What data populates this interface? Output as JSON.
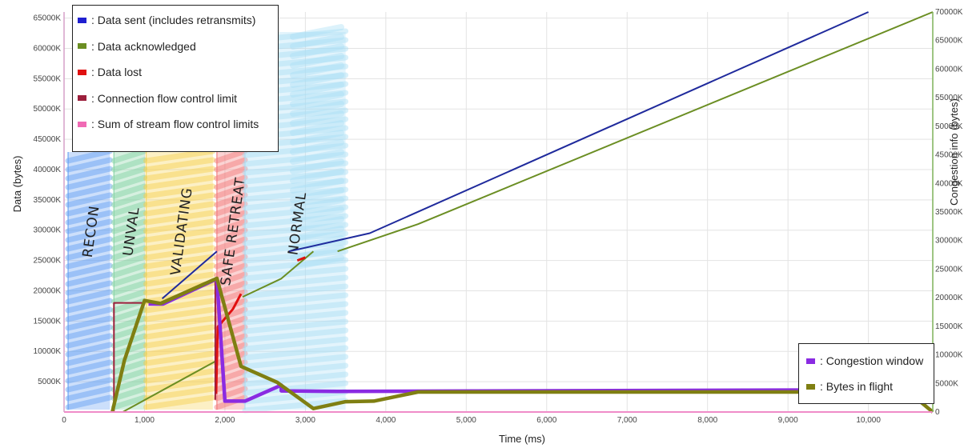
{
  "chart_data": {
    "type": "line",
    "xlabel": "Time (ms)",
    "ylabel": "Data (bytes)",
    "ylabel_right": "Congestion info (bytes)",
    "xlim": [
      0,
      10800
    ],
    "ylim": [
      0,
      66000
    ],
    "ylim_right": [
      0,
      70000
    ],
    "x_ticks": [
      {
        "value": 0,
        "label": "0"
      },
      {
        "value": 1000,
        "label": "1,000"
      },
      {
        "value": 2000,
        "label": "2,000"
      },
      {
        "value": 3000,
        "label": "3,000"
      },
      {
        "value": 4000,
        "label": "4,000"
      },
      {
        "value": 5000,
        "label": "5,000"
      },
      {
        "value": 6000,
        "label": "6,000"
      },
      {
        "value": 7000,
        "label": "7,000"
      },
      {
        "value": 8000,
        "label": "8,000"
      },
      {
        "value": 9000,
        "label": "9,000"
      },
      {
        "value": 10000,
        "label": "10,000"
      }
    ],
    "y_ticks_left": [
      {
        "value": 5000,
        "label": "5000K"
      },
      {
        "value": 10000,
        "label": "10000K"
      },
      {
        "value": 15000,
        "label": "15000K"
      },
      {
        "value": 20000,
        "label": "20000K"
      },
      {
        "value": 25000,
        "label": "25000K"
      },
      {
        "value": 30000,
        "label": "30000K"
      },
      {
        "value": 35000,
        "label": "35000K"
      },
      {
        "value": 40000,
        "label": "40000K"
      },
      {
        "value": 45000,
        "label": "45000K"
      },
      {
        "value": 50000,
        "label": "50000K"
      },
      {
        "value": 55000,
        "label": "55000K"
      },
      {
        "value": 60000,
        "label": "60000K"
      },
      {
        "value": 65000,
        "label": "65000K"
      }
    ],
    "y_ticks_right": [
      {
        "value": 0,
        "label": "0"
      },
      {
        "value": 5000,
        "label": "5000K"
      },
      {
        "value": 10000,
        "label": "10000K"
      },
      {
        "value": 15000,
        "label": "15000K"
      },
      {
        "value": 20000,
        "label": "20000K"
      },
      {
        "value": 25000,
        "label": "25000K"
      },
      {
        "value": 30000,
        "label": "30000K"
      },
      {
        "value": 35000,
        "label": "35000K"
      },
      {
        "value": 40000,
        "label": "40000K"
      },
      {
        "value": 45000,
        "label": "45000K"
      },
      {
        "value": 50000,
        "label": "50000K"
      },
      {
        "value": 55000,
        "label": "55000K"
      },
      {
        "value": 60000,
        "label": "60000K"
      },
      {
        "value": 65000,
        "label": "65000K"
      },
      {
        "value": 70000,
        "label": "70000K"
      }
    ],
    "grid": true,
    "legends": [
      {
        "placement": "top-left",
        "entries": [
          {
            "label": ": Data sent (includes retransmits)",
            "color": "#1f1fd0"
          },
          {
            "label": ": Data acknowledged",
            "color": "#6b8e23"
          },
          {
            "label": ": Data lost",
            "color": "#e01010"
          },
          {
            "label": ": Connection flow control limit",
            "color": "#9c1f3c"
          },
          {
            "label": ": Sum of stream flow control limits",
            "color": "#f06ab4"
          }
        ]
      },
      {
        "placement": "bottom-right",
        "entries": [
          {
            "label": ": Congestion window",
            "color": "#8a2be2"
          },
          {
            "label": ": Bytes in flight",
            "color": "#7f7f12"
          }
        ]
      }
    ],
    "phases": [
      {
        "label": "RECON",
        "x_start": 50,
        "x_end": 570,
        "color": "#5f9df2"
      },
      {
        "label": "UNVAL",
        "x_start": 620,
        "x_end": 1000,
        "color": "#7ed0a0"
      },
      {
        "label": "VALIDATING",
        "x_start": 1020,
        "x_end": 1850,
        "color": "#f7cf4b"
      },
      {
        "label": "SAFE RETREAT",
        "x_start": 1900,
        "x_end": 2250,
        "color": "#f27575"
      },
      {
        "label": "NORMAL",
        "x_start": 2250,
        "x_end": 3500,
        "color": "#a8def5"
      }
    ],
    "series": [
      {
        "name": ": Data sent (includes retransmits)",
        "axis": "left",
        "color": "#1f2a9c",
        "points": [
          [
            1220,
            18700
          ],
          [
            1900,
            26500
          ],
          [
            null,
            null
          ],
          [
            2800,
            26500
          ],
          [
            3800,
            29500
          ],
          [
            10000,
            66000
          ]
        ]
      },
      {
        "name": ": Data acknowledged",
        "axis": "left",
        "color": "#6b8e23",
        "points": [
          [
            730,
            0
          ],
          [
            1900,
            8500
          ],
          [
            null,
            null
          ],
          [
            2220,
            19000
          ],
          [
            2700,
            22000
          ],
          [
            3100,
            26500
          ],
          [
            null,
            null
          ],
          [
            3400,
            26500
          ],
          [
            4400,
            31000
          ],
          [
            10800,
            66000
          ]
        ]
      },
      {
        "name": ": Data lost",
        "axis": "left",
        "color": "#e01010",
        "points": [
          [
            1890,
            3000
          ],
          [
            1910,
            14000
          ],
          [
            2100,
            17000
          ],
          [
            2200,
            19500
          ],
          [
            null,
            null
          ],
          [
            2900,
            25000
          ],
          [
            3000,
            25500
          ]
        ]
      },
      {
        "name": ": Connection flow control limit",
        "axis": "left",
        "color": "#9c1f3c",
        "points": [
          [
            620,
            0
          ],
          [
            620,
            18000
          ],
          [
            1000,
            18000
          ],
          [
            null,
            null
          ],
          [
            1880,
            2000
          ],
          [
            1880,
            21500
          ]
        ]
      },
      {
        "name": ": Sum of stream flow control limits",
        "axis": "left",
        "color": "#f06ab4",
        "points": [
          [
            0,
            0
          ],
          [
            10800,
            0
          ]
        ]
      },
      {
        "name": ": Congestion window",
        "axis": "right",
        "color": "#8a2be2",
        "points": [
          [
            1050,
            18900
          ],
          [
            1230,
            18900
          ],
          [
            1900,
            23300
          ],
          [
            2000,
            1900
          ],
          [
            2250,
            1900
          ],
          [
            2700,
            4700
          ],
          [
            2700,
            3700
          ],
          [
            3400,
            3600
          ],
          [
            10800,
            3900
          ]
        ]
      },
      {
        "name": ": Bytes in flight",
        "axis": "right",
        "color": "#7f7f12",
        "points": [
          [
            600,
            0
          ],
          [
            750,
            9000
          ],
          [
            1000,
            19500
          ],
          [
            1200,
            19000
          ],
          [
            1900,
            23400
          ],
          [
            2200,
            8000
          ],
          [
            2650,
            5200
          ],
          [
            3100,
            600
          ],
          [
            3500,
            1800
          ],
          [
            3850,
            1900
          ],
          [
            4400,
            3500
          ],
          [
            10500,
            3500
          ],
          [
            10800,
            0
          ]
        ]
      }
    ]
  }
}
